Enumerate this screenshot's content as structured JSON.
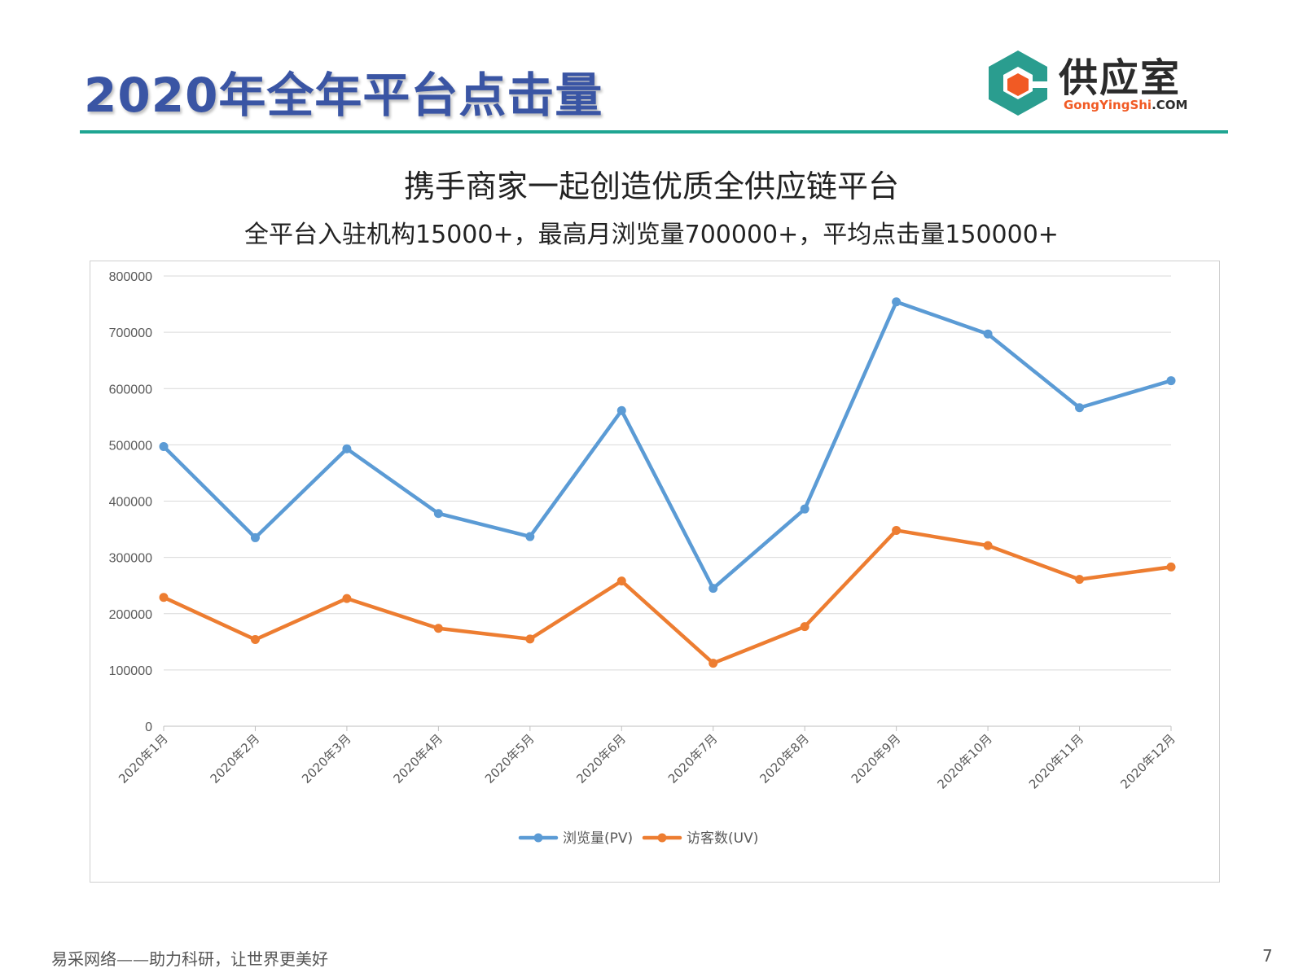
{
  "slide": {
    "title": "2020年全年平台点击量",
    "headline": "携手商家一起创造优质全供应链平台",
    "subheadline": "全平台入驻机构15000+，最高月浏览量700000+，平均点击量150000+",
    "footer": "易采网络——助力科研，让世界更美好",
    "page_number": "7"
  },
  "logo": {
    "name": "供应室",
    "domain_prefix": "GongYingShi",
    "domain_suffix": ".COM",
    "colors": {
      "teal": "#2a9d8f",
      "orange": "#f15a24"
    }
  },
  "colors": {
    "title": "#3a55a4",
    "rule": "#1fa592"
  },
  "chart_data": {
    "type": "line",
    "categories": [
      "2020年1月",
      "2020年2月",
      "2020年3月",
      "2020年4月",
      "2020年5月",
      "2020年6月",
      "2020年7月",
      "2020年8月",
      "2020年9月",
      "2020年10月",
      "2020年11月",
      "2020年12月"
    ],
    "series": [
      {
        "name": "浏览量(PV)",
        "color": "#5b9bd5",
        "values": [
          497000,
          335000,
          493000,
          378000,
          337000,
          561000,
          245000,
          386000,
          754000,
          697000,
          566000,
          614000
        ]
      },
      {
        "name": "访客数(UV)",
        "color": "#ed7d31",
        "values": [
          229000,
          154000,
          227000,
          174000,
          155000,
          258000,
          112000,
          177000,
          348000,
          321000,
          261000,
          283000
        ]
      }
    ],
    "ylim": [
      0,
      800000
    ],
    "yticks": [
      0,
      100000,
      200000,
      300000,
      400000,
      500000,
      600000,
      700000,
      800000
    ],
    "grid": true,
    "legend_position": "bottom"
  }
}
